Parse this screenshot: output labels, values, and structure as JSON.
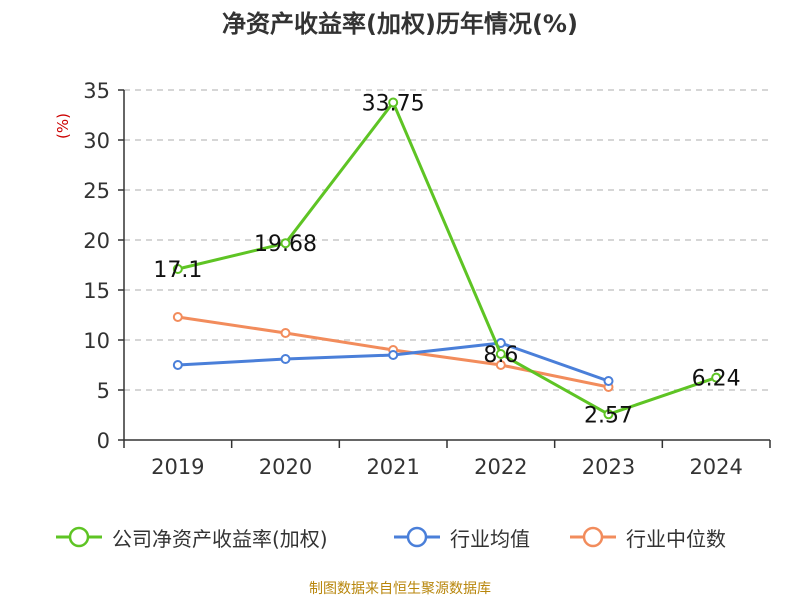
{
  "title": "净资产收益率(加权)历年情况(%)",
  "source": "制图数据来自恒生聚源数据库",
  "chart_data": {
    "type": "line",
    "title": "净资产收益率(加权)历年情况(%)",
    "ylabel": "(%)",
    "xlabel": "",
    "ylim": [
      0,
      35
    ],
    "y_ticks": [
      0,
      5,
      10,
      15,
      20,
      25,
      30,
      35
    ],
    "categories": [
      "2019",
      "2020",
      "2021",
      "2022",
      "2023",
      "2024"
    ],
    "grid": "horizontal-dashed",
    "legend_position": "bottom",
    "series": [
      {
        "name": "公司净资产收益率(加权)",
        "color": "#5ec424",
        "values": [
          17.1,
          19.68,
          33.75,
          8.6,
          2.57,
          6.24
        ],
        "labels": [
          "17.1",
          "19.68",
          "33.75",
          "8.6",
          "2.57",
          "6.24"
        ]
      },
      {
        "name": "行业均值",
        "color": "#4a7fd9",
        "values": [
          7.5,
          8.1,
          8.5,
          9.7,
          5.9,
          null
        ]
      },
      {
        "name": "行业中位数",
        "color": "#f28c5c",
        "values": [
          12.3,
          10.7,
          9.0,
          7.5,
          5.3,
          null
        ]
      }
    ]
  }
}
